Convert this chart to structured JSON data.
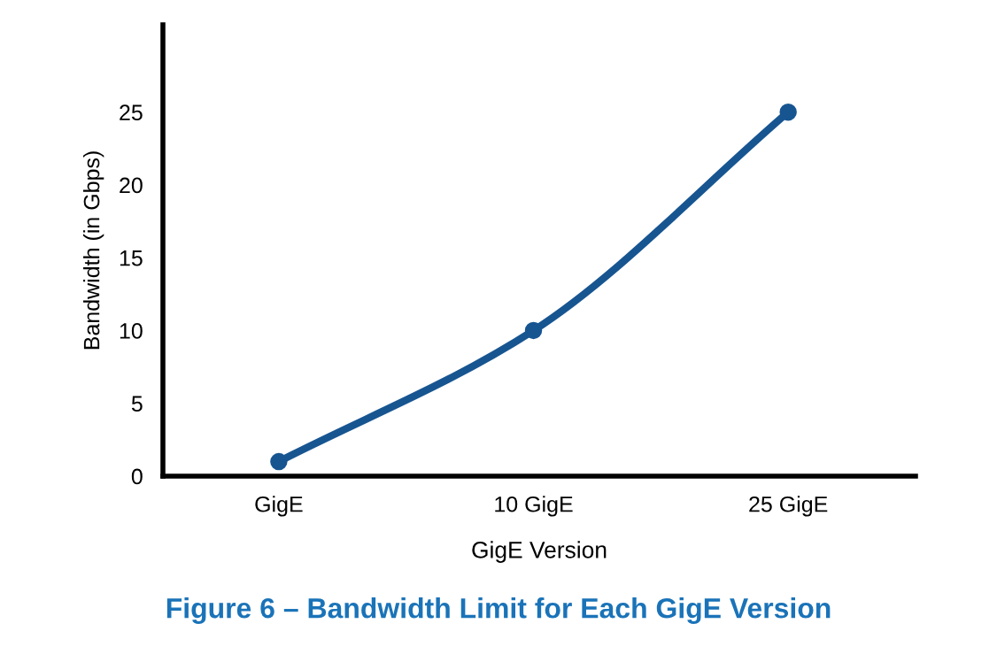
{
  "chart_data": {
    "type": "line",
    "title": "Figure 6 – Bandwidth Limit for Each GigE Version",
    "xlabel": "GigE Version",
    "ylabel": "Bandwidth (in Gbps)",
    "categories": [
      "GigE",
      "10 GigE",
      "25 GigE"
    ],
    "series": [
      {
        "color": "#175591",
        "values": [
          1,
          10,
          25
        ]
      }
    ],
    "ylim": [
      0,
      31
    ],
    "yticks": [
      0,
      5,
      10,
      15,
      20,
      25
    ],
    "grid": false,
    "legend": false,
    "marker": "circle",
    "line_style": "solid"
  }
}
